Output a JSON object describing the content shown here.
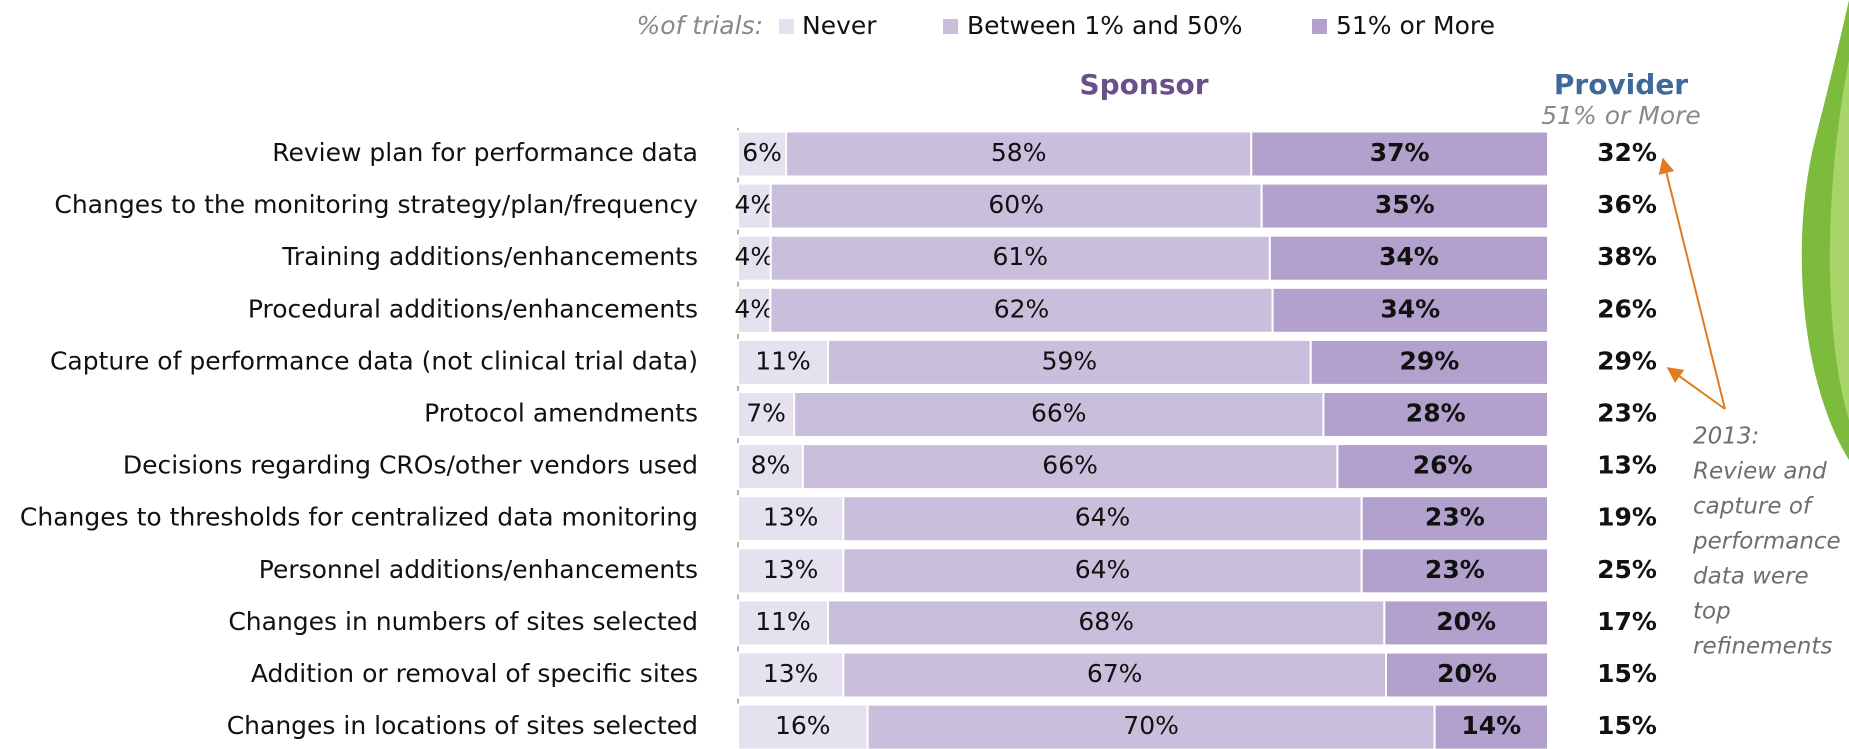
{
  "chart_data": {
    "type": "bar",
    "stacked": true,
    "orientation": "horizontal",
    "legend_title": "%of trials:",
    "panel_title": "Sponsor",
    "categories": [
      "Review plan for performance data",
      "Changes to the monitoring strategy/plan/frequency",
      "Training additions/enhancements",
      "Procedural additions/enhancements",
      "Capture of performance data (not clinical trial data)",
      "Protocol amendments",
      "Decisions regarding CROs/other vendors used",
      "Changes to thresholds for centralized data monitoring",
      "Personnel additions/enhancements",
      "Changes in numbers of sites selected",
      "Addition or removal of specific sites",
      "Changes in locations of sites selected"
    ],
    "series": [
      {
        "name": "Never",
        "color": "#e6e1ee",
        "values": [
          6,
          4,
          4,
          4,
          11,
          7,
          8,
          13,
          13,
          11,
          13,
          16
        ],
        "value_labels": [
          "6%",
          "4%",
          "4%",
          "4%",
          "11%",
          "7%",
          "8%",
          "13%",
          "13%",
          "11%",
          "13%",
          "16%"
        ]
      },
      {
        "name": "Between 1% and 50%",
        "color": "#c9bfdc",
        "values": [
          58,
          60,
          61,
          62,
          59,
          66,
          66,
          64,
          64,
          68,
          67,
          70
        ],
        "value_labels": [
          "58%",
          "60%",
          "61%",
          "62%",
          "59%",
          "66%",
          "66%",
          "64%",
          "64%",
          "68%",
          "67%",
          "70%"
        ]
      },
      {
        "name": "51% or More",
        "color": "#b1a1cc",
        "values": [
          37,
          35,
          34,
          34,
          29,
          28,
          26,
          23,
          23,
          20,
          20,
          14
        ],
        "value_labels": [
          "37%",
          "35%",
          "34%",
          "34%",
          "29%",
          "28%",
          "26%",
          "23%",
          "23%",
          "20%",
          "20%",
          "14%"
        ]
      }
    ],
    "provider": {
      "title": "Provider",
      "subtitle": "51% or More",
      "values": [
        32,
        36,
        38,
        26,
        29,
        23,
        13,
        19,
        25,
        17,
        15,
        15
      ],
      "value_labels": [
        "32%",
        "36%",
        "38%",
        "26%",
        "29%",
        "23%",
        "13%",
        "19%",
        "25%",
        "17%",
        "15%",
        "15%"
      ]
    },
    "annotation": [
      "2013:",
      "Review and",
      "capture of",
      "performance",
      "data were",
      "top",
      "refinements"
    ]
  }
}
